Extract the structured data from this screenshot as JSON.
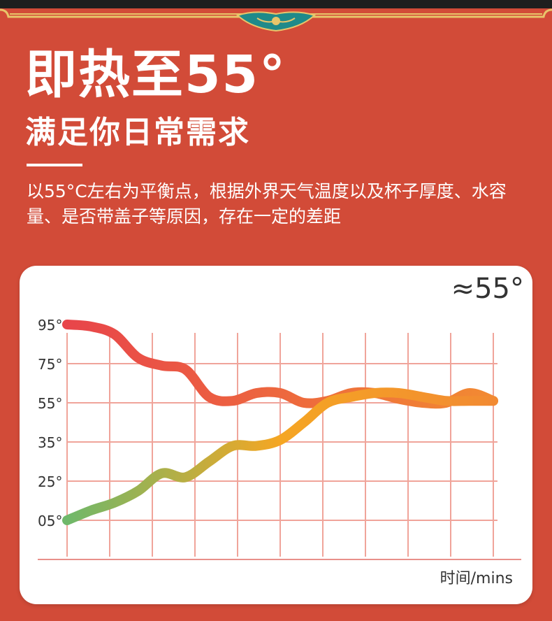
{
  "headline": "即热至55°",
  "subheadline": "满足你日常需求",
  "description": "以55°C左右为平衡点，根据外界天气温度以及杯子厚度、水容量、是否带盖子等原因，存在一定的差距",
  "colors": {
    "background": "#d24b38",
    "card": "#ffffff",
    "grid": "#f0a49a",
    "axis": "#e8908a",
    "gold": "#e8c56a",
    "teal": "#1f8a8a"
  },
  "chart_data": {
    "type": "line",
    "annotation": "≈55°",
    "xlabel": "时间/mins",
    "ylabel": "",
    "y_tick_labels": [
      "95°",
      "75°",
      "55°",
      "35°",
      "25°",
      "05°"
    ],
    "y_tick_values": [
      95,
      75,
      55,
      35,
      25,
      5
    ],
    "x_grid_count": 10,
    "x": [
      0,
      0.5,
      1,
      1.5,
      2,
      2.5,
      3,
      3.5,
      4,
      4.5,
      5,
      5.5,
      6,
      6.5,
      7,
      7.5,
      8,
      8.5,
      9
    ],
    "series": [
      {
        "name": "",
        "values": [
          95,
          94,
          90,
          78,
          74,
          72,
          58,
          56,
          60,
          60,
          55,
          56,
          60,
          60,
          57,
          55,
          55,
          60,
          56
        ],
        "colors": [
          "#e8454a",
          "#f28a32"
        ]
      },
      {
        "name": "",
        "values": [
          5,
          10,
          14,
          20,
          27,
          26,
          30,
          34,
          34,
          36,
          45,
          55,
          58,
          60,
          60,
          58,
          56,
          56,
          56
        ],
        "colors": [
          "#6fb86a",
          "#f5a623",
          "#f28a32"
        ]
      }
    ],
    "grid": true
  }
}
